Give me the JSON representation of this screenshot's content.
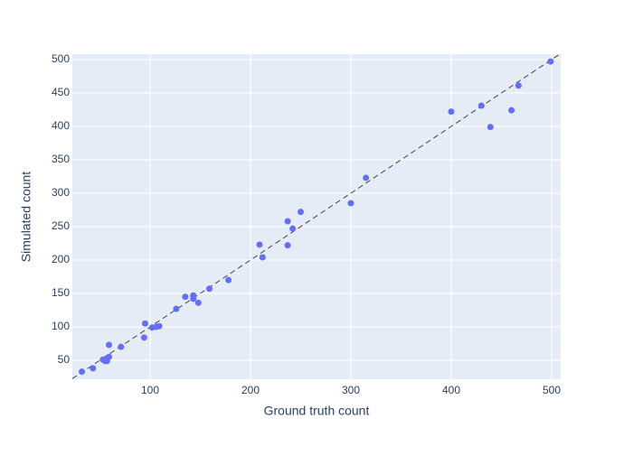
{
  "chart_data": {
    "type": "scatter",
    "x_label": "Ground truth count",
    "y_label": "Simulated count",
    "series": [
      {
        "color": "#636efa",
        "x": [
          32,
          43,
          53,
          55,
          57,
          59,
          57,
          59,
          71,
          94,
          95,
          102,
          106,
          109,
          126,
          135,
          143,
          143,
          148,
          159,
          178,
          209,
          212,
          237,
          237,
          242,
          250,
          300,
          315,
          400,
          430,
          439,
          460,
          467,
          499
        ],
        "values": [
          33,
          38,
          51,
          49,
          53,
          55,
          49,
          73,
          70,
          84,
          105,
          99,
          100,
          101,
          127,
          145,
          147,
          142,
          136,
          157,
          170,
          223,
          204,
          258,
          222,
          247,
          272,
          285,
          323,
          422,
          431,
          399,
          424,
          461,
          497
        ]
      }
    ],
    "xlim": [
      22.5,
      509
    ],
    "ylim": [
      21.6,
      508
    ],
    "xticks": [
      100,
      200,
      300,
      400,
      500
    ],
    "yticks": [
      50,
      100,
      150,
      200,
      250,
      300,
      350,
      400,
      450,
      500
    ],
    "grid": true
  }
}
